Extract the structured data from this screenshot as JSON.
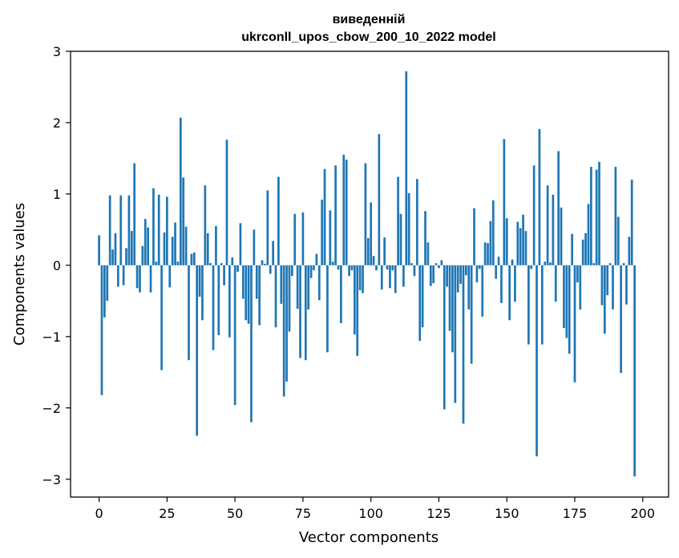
{
  "chart_data": {
    "type": "bar",
    "title_line1": "виведенній",
    "title_line2": "ukrconll_upos_cbow_200_10_2022 model",
    "xlabel": "Vector components",
    "ylabel": "Components values",
    "bar_color": "#1f77b4",
    "xlim": [
      -10.5,
      209.5
    ],
    "ylim": [
      -3.25,
      3.0
    ],
    "xticks": [
      0,
      25,
      50,
      75,
      100,
      125,
      150,
      175,
      200
    ],
    "xtick_labels": [
      "0",
      "25",
      "50",
      "75",
      "100",
      "125",
      "150",
      "175",
      "200"
    ],
    "yticks": [
      -3,
      -2,
      -1,
      0,
      1,
      2,
      3
    ],
    "ytick_labels": [
      "−3",
      "−2",
      "−1",
      "0",
      "1",
      "2",
      "3"
    ],
    "values": [
      0.42,
      -1.82,
      -0.73,
      -0.5,
      0.98,
      0.22,
      0.45,
      -0.3,
      0.98,
      -0.28,
      0.24,
      0.98,
      0.48,
      1.43,
      -0.32,
      -0.38,
      0.27,
      0.65,
      0.53,
      -0.38,
      1.08,
      0.05,
      0.99,
      -1.47,
      0.46,
      0.96,
      -0.31,
      0.4,
      0.6,
      0.05,
      2.07,
      1.23,
      0.54,
      -1.33,
      0.16,
      0.18,
      -2.39,
      -0.44,
      -0.77,
      1.12,
      0.45,
      0.03,
      -1.19,
      0.55,
      -0.98,
      0.03,
      -0.28,
      1.76,
      -1.01,
      0.11,
      -1.96,
      -0.09,
      0.59,
      -0.47,
      -0.77,
      -0.82,
      -2.2,
      0.5,
      -0.47,
      -0.84,
      0.07,
      0.02,
      1.05,
      -0.12,
      0.34,
      -0.87,
      1.24,
      -0.54,
      -1.84,
      -1.63,
      -0.93,
      -0.15,
      0.72,
      -0.61,
      -1.3,
      0.74,
      -1.33,
      -0.62,
      -0.18,
      -0.07,
      0.16,
      -0.49,
      0.92,
      1.35,
      -1.22,
      0.77,
      0.05,
      1.4,
      -0.06,
      -0.81,
      1.55,
      1.48,
      -0.15,
      -0.07,
      -0.97,
      -1.27,
      -0.35,
      -0.39,
      1.43,
      0.38,
      0.88,
      0.13,
      -0.07,
      1.84,
      -0.34,
      0.39,
      -0.06,
      -0.32,
      -0.07,
      -0.39,
      1.24,
      0.72,
      -0.3,
      2.72,
      1.01,
      0.03,
      -0.15,
      1.21,
      -1.06,
      -0.87,
      0.76,
      0.32,
      -0.29,
      -0.25,
      0.03,
      -0.04,
      0.07,
      -2.02,
      -0.3,
      -0.92,
      -1.22,
      -1.93,
      -0.38,
      -0.26,
      -2.22,
      -0.14,
      -0.62,
      -1.38,
      0.8,
      -0.24,
      -0.05,
      -0.72,
      0.32,
      0.31,
      0.62,
      0.91,
      -0.19,
      0.12,
      -0.53,
      1.77,
      0.66,
      -0.77,
      0.08,
      -0.51,
      0.61,
      0.52,
      0.71,
      0.48,
      -1.11,
      -0.05,
      1.4,
      -2.68,
      1.91,
      -1.11,
      0.05,
      1.12,
      0.04,
      0.99,
      -0.51,
      1.6,
      0.81,
      -0.88,
      -1.02,
      -1.24,
      0.44,
      -1.64,
      -0.24,
      -0.62,
      0.36,
      0.45,
      0.86,
      1.38,
      0.03,
      1.34,
      1.45,
      -0.56,
      -0.96,
      -0.42,
      0.03,
      -0.62,
      1.38,
      0.68,
      -1.51,
      0.03,
      -0.55,
      0.4,
      1.2,
      -2.96,
      0.0,
      0.0
    ]
  }
}
